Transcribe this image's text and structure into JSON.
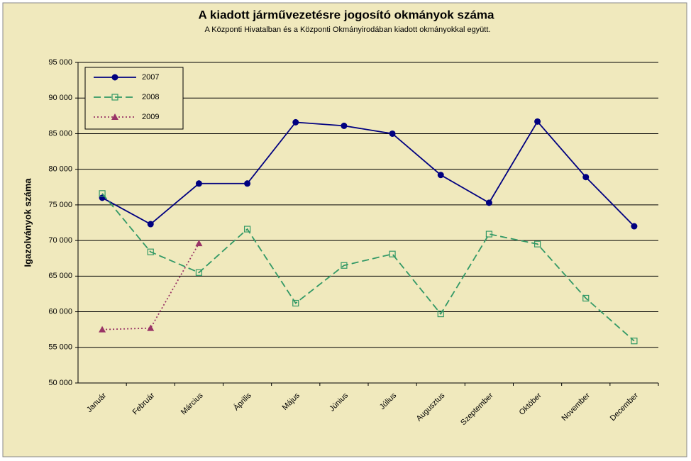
{
  "chart_data": {
    "type": "line",
    "title": "A  kiadott járművezetésre  jogosító okmányok száma",
    "subtitle": "A  Központi Hivatalban és a Központi Okmányirodában kiadott okmányokkal együtt.",
    "y_label": "Igazolványok száma",
    "categories": [
      "Január",
      "Február",
      "Március",
      "Április",
      "Május",
      "Június",
      "Július",
      "Augusztus",
      "Szeptember",
      "Október",
      "November",
      "December"
    ],
    "series": [
      {
        "name": "2007",
        "color": "#000080",
        "marker": "circle",
        "dash": "solid",
        "values": [
          76000,
          72300,
          78000,
          78000,
          86600,
          86100,
          85000,
          79200,
          75300,
          86700,
          78900,
          72000
        ]
      },
      {
        "name": "2008",
        "color": "#339966",
        "marker": "square",
        "dash": "dashed",
        "values": [
          76600,
          68400,
          65500,
          71600,
          61200,
          66500,
          68100,
          59700,
          70900,
          69500,
          61900,
          55900
        ]
      },
      {
        "name": "2009",
        "color": "#993366",
        "marker": "triangle",
        "dash": "dotted",
        "values": [
          57500,
          57700,
          69600,
          null,
          null,
          null,
          null,
          null,
          null,
          null,
          null,
          null
        ]
      }
    ],
    "ylim": [
      50000,
      95000
    ],
    "yticks": [
      {
        "value": 50000,
        "label": "50 000"
      },
      {
        "value": 55000,
        "label": "55 000"
      },
      {
        "value": 60000,
        "label": "60 000"
      },
      {
        "value": 65000,
        "label": "65 000"
      },
      {
        "value": 70000,
        "label": "70 000"
      },
      {
        "value": 75000,
        "label": "75 000"
      },
      {
        "value": 80000,
        "label": "80 000"
      },
      {
        "value": 85000,
        "label": "85 000"
      },
      {
        "value": 90000,
        "label": "90 000"
      },
      {
        "value": 95000,
        "label": "95 000"
      }
    ],
    "grid": true,
    "legend": "top-left"
  }
}
